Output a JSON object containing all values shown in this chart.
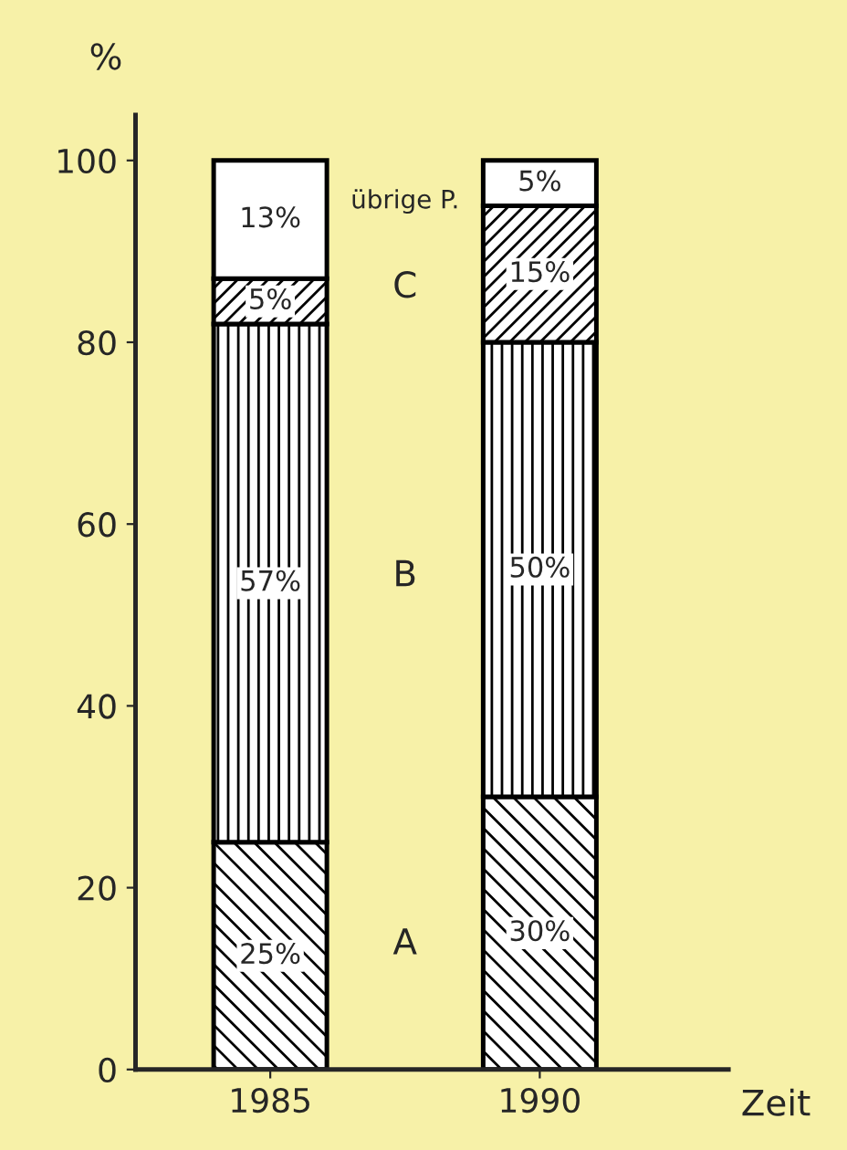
{
  "chart_data": {
    "type": "bar",
    "stacked": true,
    "ylabel": "%",
    "xlabel": "Zeit",
    "categories": [
      "1985",
      "1990"
    ],
    "series": [
      {
        "name": "A",
        "color": "#000000",
        "values": [
          25,
          30
        ],
        "value_labels": [
          "25%",
          "30%"
        ]
      },
      {
        "name": "B",
        "color": "#000000",
        "values": [
          57,
          50
        ],
        "value_labels": [
          "57%",
          "50%"
        ]
      },
      {
        "name": "C",
        "color": "#000000",
        "values": [
          5,
          15
        ],
        "value_labels": [
          "5%",
          "15%"
        ]
      },
      {
        "name": "übrige P.",
        "color": "#ffffff",
        "values": [
          13,
          5
        ],
        "value_labels": [
          "13%",
          "5%"
        ]
      }
    ],
    "ylim": [
      0,
      105
    ],
    "yticks": [
      0,
      20,
      40,
      60,
      80,
      100
    ],
    "grid": false,
    "legend": false
  }
}
